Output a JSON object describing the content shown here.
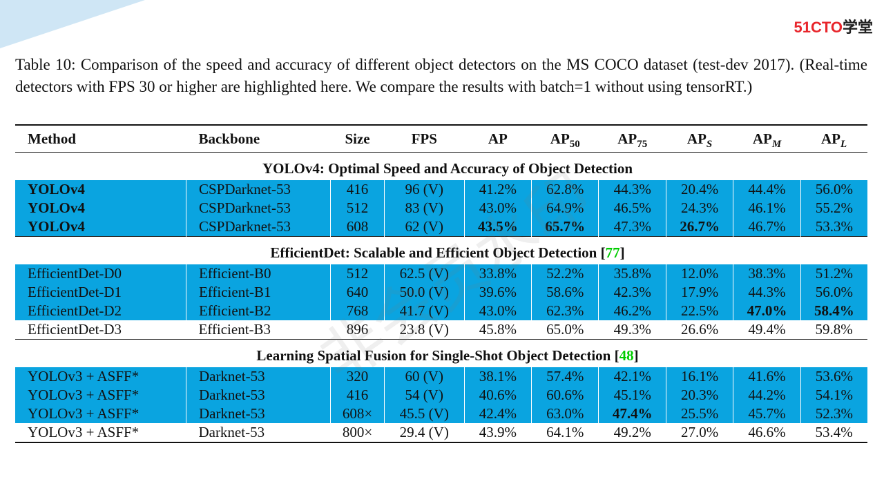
{
  "logo": {
    "part1": "51CTO",
    "part2": "学堂"
  },
  "caption": "Table 10: Comparison of the speed and accuracy of different object detectors on the MS COCO dataset (test-dev 2017). (Real-time detectors with FPS 30 or higher are highlighted here. We compare the results with batch=1 without using tensorRT.)",
  "watermark": "非会员水印",
  "headers": {
    "method": "Method",
    "backbone": "Backbone",
    "size": "Size",
    "fps": "FPS",
    "ap": "AP",
    "ap50_base": "AP",
    "ap50_sub": "50",
    "ap75_base": "AP",
    "ap75_sub": "75",
    "aps_base": "AP",
    "aps_sub": "S",
    "apm_base": "AP",
    "apm_sub": "M",
    "apl_base": "AP",
    "apl_sub": "L"
  },
  "sections": [
    {
      "title": "YOLOv4: Optimal Speed and Accuracy of Object Detection",
      "ref": "",
      "rows": [
        {
          "method": "YOLOv4",
          "backbone": "CSPDarknet-53",
          "size": "416",
          "fps": "96 (V)",
          "ap": "41.2%",
          "ap50": "62.8%",
          "ap75": "44.3%",
          "aps": "20.4%",
          "apm": "44.4%",
          "apl": "56.0%",
          "highlight": true,
          "bold": [
            "method"
          ]
        },
        {
          "method": "YOLOv4",
          "backbone": "CSPDarknet-53",
          "size": "512",
          "fps": "83 (V)",
          "ap": "43.0%",
          "ap50": "64.9%",
          "ap75": "46.5%",
          "aps": "24.3%",
          "apm": "46.1%",
          "apl": "55.2%",
          "highlight": true,
          "bold": [
            "method"
          ]
        },
        {
          "method": "YOLOv4",
          "backbone": "CSPDarknet-53",
          "size": "608",
          "fps": "62 (V)",
          "ap": "43.5%",
          "ap50": "65.7%",
          "ap75": "47.3%",
          "aps": "26.7%",
          "apm": "46.7%",
          "apl": "53.3%",
          "highlight": true,
          "bold": [
            "method",
            "ap",
            "ap50",
            "aps"
          ]
        }
      ]
    },
    {
      "title": "EfficientDet: Scalable and Efficient Object Detection",
      "ref": "77",
      "rows": [
        {
          "method": "EfficientDet-D0",
          "backbone": "Efficient-B0",
          "size": "512",
          "fps": "62.5 (V)",
          "ap": "33.8%",
          "ap50": "52.2%",
          "ap75": "35.8%",
          "aps": "12.0%",
          "apm": "38.3%",
          "apl": "51.2%",
          "highlight": true,
          "bold": []
        },
        {
          "method": "EfficientDet-D1",
          "backbone": "Efficient-B1",
          "size": "640",
          "fps": "50.0 (V)",
          "ap": "39.6%",
          "ap50": "58.6%",
          "ap75": "42.3%",
          "aps": "17.9%",
          "apm": "44.3%",
          "apl": "56.0%",
          "highlight": true,
          "bold": []
        },
        {
          "method": "EfficientDet-D2",
          "backbone": "Efficient-B2",
          "size": "768",
          "fps": "41.7 (V)",
          "ap": "43.0%",
          "ap50": "62.3%",
          "ap75": "46.2%",
          "aps": "22.5%",
          "apm": "47.0%",
          "apl": "58.4%",
          "highlight": true,
          "bold": [
            "apm",
            "apl"
          ]
        },
        {
          "method": "EfficientDet-D3",
          "backbone": "Efficient-B3",
          "size": "896",
          "fps": "23.8 (V)",
          "ap": "45.8%",
          "ap50": "65.0%",
          "ap75": "49.3%",
          "aps": "26.6%",
          "apm": "49.4%",
          "apl": "59.8%",
          "highlight": false,
          "bold": []
        }
      ]
    },
    {
      "title": "Learning Spatial Fusion for Single-Shot Object Detection",
      "ref": "48",
      "rows": [
        {
          "method": "YOLOv3 + ASFF*",
          "backbone": "Darknet-53",
          "size": "320",
          "fps": "60 (V)",
          "ap": "38.1%",
          "ap50": "57.4%",
          "ap75": "42.1%",
          "aps": "16.1%",
          "apm": "41.6%",
          "apl": "53.6%",
          "highlight": true,
          "bold": []
        },
        {
          "method": "YOLOv3 + ASFF*",
          "backbone": "Darknet-53",
          "size": "416",
          "fps": "54 (V)",
          "ap": "40.6%",
          "ap50": "60.6%",
          "ap75": "45.1%",
          "aps": "20.3%",
          "apm": "44.2%",
          "apl": "54.1%",
          "highlight": true,
          "bold": []
        },
        {
          "method": "YOLOv3 + ASFF*",
          "backbone": "Darknet-53",
          "size": "608×",
          "fps": "45.5 (V)",
          "ap": "42.4%",
          "ap50": "63.0%",
          "ap75": "47.4%",
          "aps": "25.5%",
          "apm": "45.7%",
          "apl": "52.3%",
          "highlight": true,
          "bold": [
            "ap75"
          ]
        },
        {
          "method": "YOLOv3 + ASFF*",
          "backbone": "Darknet-53",
          "size": "800×",
          "fps": "29.4 (V)",
          "ap": "43.9%",
          "ap50": "64.1%",
          "ap75": "49.2%",
          "aps": "27.0%",
          "apm": "46.6%",
          "apl": "53.4%",
          "highlight": false,
          "bold": []
        }
      ]
    }
  ],
  "colors": {
    "highlight": "#0aa4e0",
    "ref": "#00cc00",
    "logo_red": "#e8262c"
  }
}
